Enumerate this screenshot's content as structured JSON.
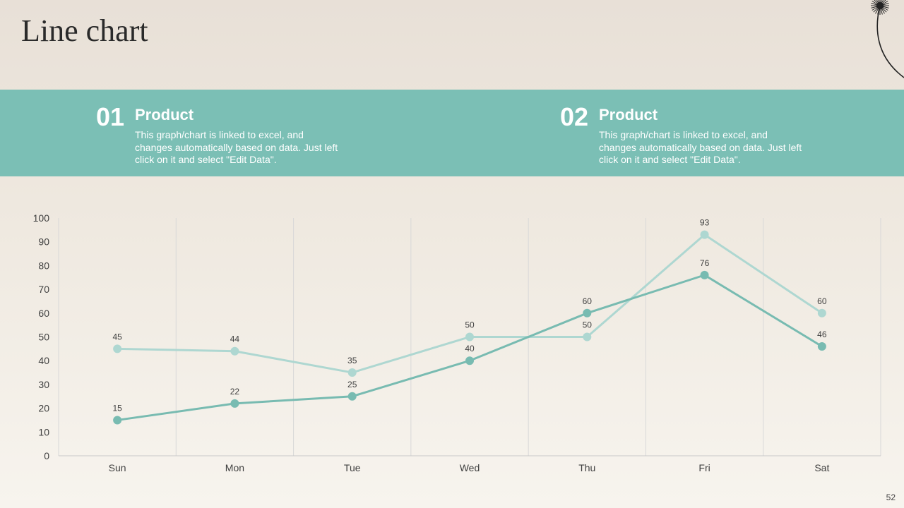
{
  "slide": {
    "title": "Line chart",
    "page_number": "52"
  },
  "blocks": [
    {
      "number": "01",
      "heading": "Product",
      "description": "This graph/chart is linked to excel, and changes automatically based on data. Just left click on it and select \"Edit Data\"."
    },
    {
      "number": "02",
      "heading": "Product",
      "description": "This graph/chart is linked to excel, and changes automatically based on data. Just left click on it and select \"Edit Data\"."
    }
  ],
  "colors": {
    "band": "#7bbfb5",
    "series_dark": "#78bbb1",
    "series_light": "#aed7d1"
  },
  "chart_data": {
    "type": "line",
    "categories": [
      "Sun",
      "Mon",
      "Tue",
      "Wed",
      "Thu",
      "Fri",
      "Sat"
    ],
    "series": [
      {
        "values": [
          15,
          22,
          25,
          40,
          60,
          76,
          46
        ],
        "color": "#78bbb1"
      },
      {
        "values": [
          45,
          44,
          35,
          50,
          50,
          93,
          60
        ],
        "color": "#aed7d1"
      }
    ],
    "ylim": [
      0,
      100
    ],
    "yticks": [
      0,
      10,
      20,
      30,
      40,
      50,
      60,
      70,
      80,
      90,
      100
    ],
    "grid": "vertical",
    "data_labels": true,
    "legend": "none"
  }
}
